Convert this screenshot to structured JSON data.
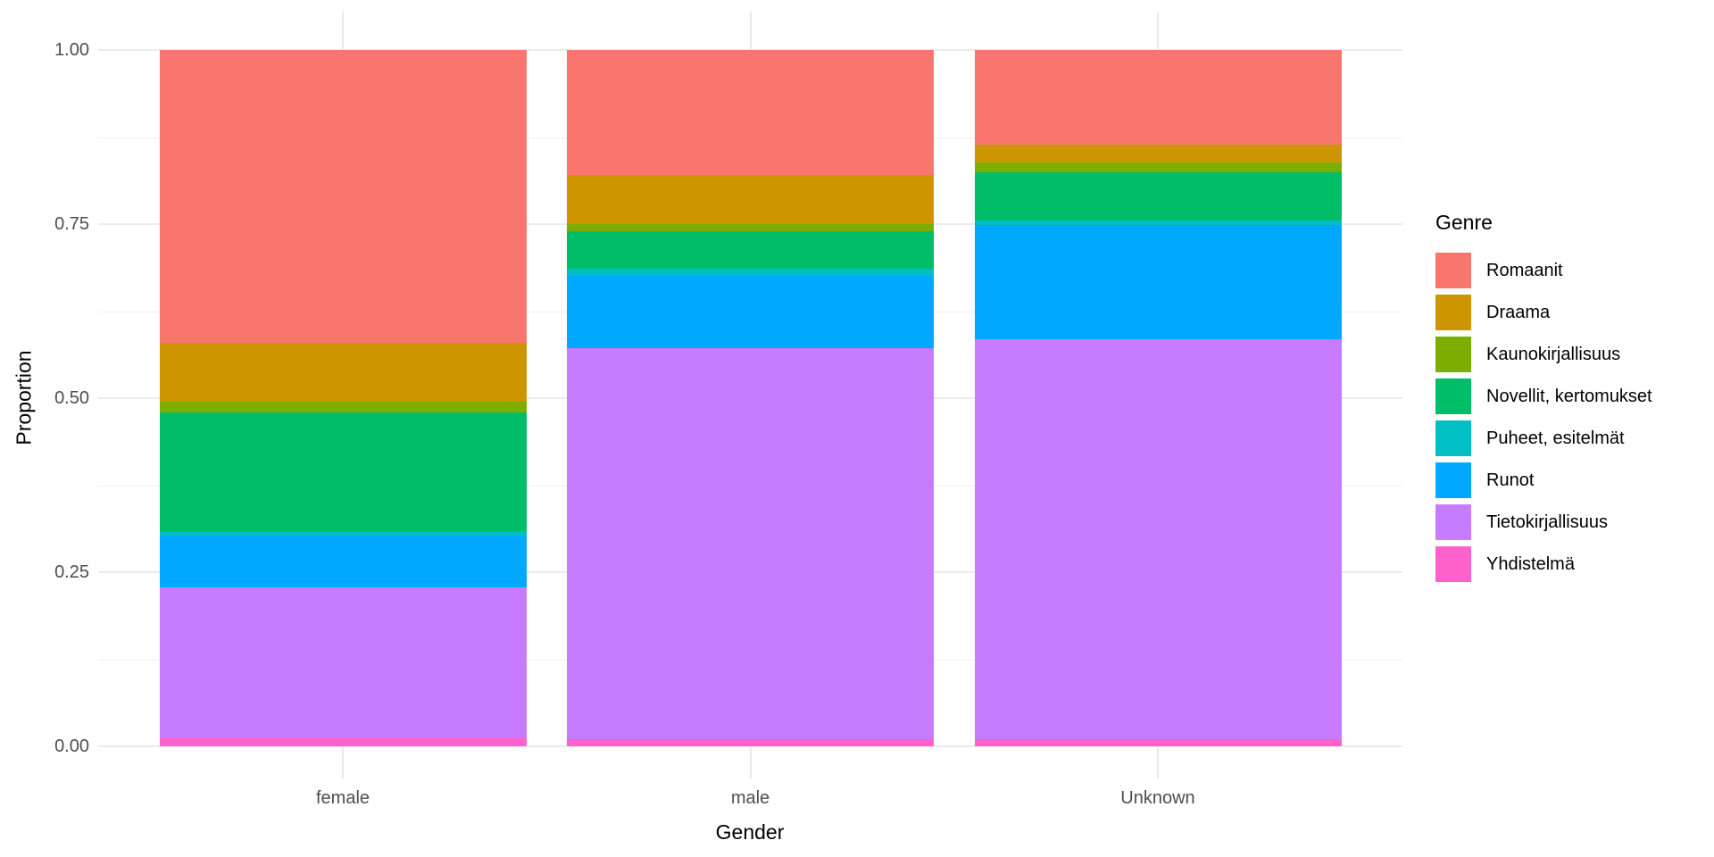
{
  "chart_data": {
    "type": "bar",
    "subtype": "stacked-proportion",
    "title": "",
    "xlabel": "Gender",
    "ylabel": "Proportion",
    "categories": [
      "female",
      "male",
      "Unknown"
    ],
    "ylim": [
      0,
      1
    ],
    "ytick_labels": [
      "1.00",
      "0.75",
      "0.50",
      "0.25",
      "0.00"
    ],
    "yticks": [
      1.0,
      0.75,
      0.5,
      0.25,
      0.0
    ],
    "grid": true,
    "legend_position": "right",
    "legend_title": "Genre",
    "stack_note": "series order = top-to-bottom of each bar and legend",
    "series": [
      {
        "name": "Romaanit",
        "color": "#F8766D",
        "values": [
          0.42,
          0.179,
          0.136
        ]
      },
      {
        "name": "Draama",
        "color": "#CD9600",
        "values": [
          0.085,
          0.071,
          0.026
        ]
      },
      {
        "name": "Kaunokirjallisuus",
        "color": "#7CAE00",
        "values": [
          0.015,
          0.01,
          0.014
        ]
      },
      {
        "name": "Novellit, kertomukset",
        "color": "#00BE67",
        "values": [
          0.171,
          0.054,
          0.069
        ]
      },
      {
        "name": "Puheet, esitelmät",
        "color": "#00BFC4",
        "values": [
          0.007,
          0.01,
          0.006
        ]
      },
      {
        "name": "Runot",
        "color": "#00A9FF",
        "values": [
          0.074,
          0.104,
          0.164
        ]
      },
      {
        "name": "Tietokirjallisuus",
        "color": "#C77CFF",
        "values": [
          0.216,
          0.562,
          0.575
        ]
      },
      {
        "name": "Yhdistelmä",
        "color": "#FF61CC",
        "values": [
          0.012,
          0.01,
          0.01
        ]
      }
    ],
    "colors": {
      "grid_major": "#EBEBEB",
      "tick_label": "#4D4D4D",
      "axis_title": "#000000",
      "background": "#FFFFFF"
    }
  }
}
